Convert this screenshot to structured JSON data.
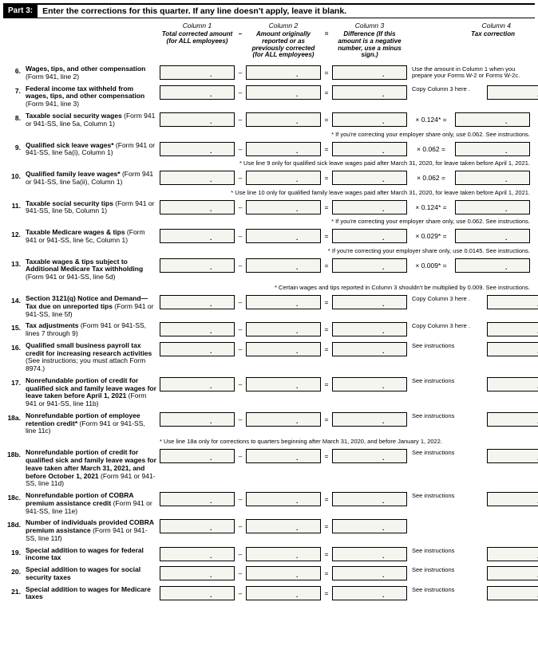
{
  "part": {
    "label": "Part 3:",
    "title": "Enter the corrections for this quarter. If any line doesn't apply, leave it blank."
  },
  "cols": {
    "h1": "Column 1",
    "h2": "Column 2",
    "h3": "Column 3",
    "h4": "Column 4",
    "s1": "Total corrected amount (for ALL employees)",
    "s2": "Amount originally reported or as previously corrected (for ALL employees)",
    "s3": "Difference (If this amount is a negative number, use a minus sign.)",
    "s4": "Tax correction"
  },
  "r6": {
    "n": "6.",
    "l": "Wages, tips, and other compensation",
    "s": " (Form 941, line 2)",
    "note": "Use the amount in Column 1 when you prepare your Forms W-2 or Forms W-2c."
  },
  "r7": {
    "n": "7.",
    "l": "Federal income tax withheld from wages, tips, and other compensation",
    "s": " (Form 941, line 3)",
    "note": "Copy Column 3 here ."
  },
  "r8": {
    "n": "8.",
    "l": "Taxable social security wages",
    "s": " (Form 941 or 941-SS, line 5a, Column 1)",
    "rate": "× 0.124* =",
    "fn": "* If you're correcting your employer share only, use 0.062. See instructions."
  },
  "r9": {
    "n": "9.",
    "l": "Qualified sick leave wages*",
    "s": " (Form 941 or 941-SS, line 5a(i), Column 1)",
    "rate": "× 0.062 =",
    "fn": "* Use line 9 only for qualified sick leave wages paid after March 31, 2020, for leave taken before April 1, 2021."
  },
  "r10": {
    "n": "10.",
    "l": "Qualified family leave wages*",
    "s": " (Form 941 or 941-SS, line 5a(ii), Column 1)",
    "rate": "× 0.062 =",
    "fn": "* Use line 10 only for qualified family leave wages paid after March 31, 2020, for leave taken before April 1, 2021."
  },
  "r11": {
    "n": "11.",
    "l": "Taxable social security tips",
    "s": " (Form 941 or 941-SS, line 5b, Column 1)",
    "rate": "× 0.124* =",
    "fn": "* If you're correcting your employer share only, use 0.062. See instructions."
  },
  "r12": {
    "n": "12.",
    "l": "Taxable Medicare wages & tips",
    "s": " (Form 941 or 941-SS, line 5c, Column 1)",
    "rate": "× 0.029* =",
    "fn": "* If you're correcting your employer share only, use 0.0145. See instructions."
  },
  "r13": {
    "n": "13.",
    "l": "Taxable wages & tips subject to Additional Medicare Tax withholding",
    "s": " (Form 941 or 941-SS, line 5d)",
    "rate": "× 0.009* =",
    "fn": "* Certain wages and tips reported in Column 3 shouldn't be multiplied by 0.009. See instructions."
  },
  "r14": {
    "n": "14.",
    "l": "Section 3121(q) Notice and Demand—Tax due on unreported tips",
    "s": " (Form 941 or 941-SS, line 5f)",
    "note": "Copy Column 3 here ."
  },
  "r15": {
    "n": "15.",
    "l": "Tax adjustments",
    "s": " (Form 941 or 941-SS, lines 7 through 9)",
    "note": "Copy Column 3 here ."
  },
  "r16": {
    "n": "16.",
    "l": "Qualified small business payroll tax credit for increasing research activities",
    "s": " (See instructions; you must attach Form 8974.)",
    "note": "See instructions"
  },
  "r17": {
    "n": "17.",
    "l": "Nonrefundable portion of credit for qualified sick and family leave wages for leave taken before April 1, 2021",
    "s": " (Form 941 or 941-SS, line 11b)",
    "note": "See instructions"
  },
  "r18a": {
    "n": "18a.",
    "l": "Nonrefundable portion of employee retention credit*",
    "s": " (Form 941 or 941-SS, line 11c)",
    "note": "See instructions",
    "fn": "* Use line 18a only for corrections to quarters beginning after March 31, 2020, and before January 1, 2022."
  },
  "r18b": {
    "n": "18b.",
    "l": "Nonrefundable portion of credit for qualified sick and family leave wages for leave taken after March 31, 2021, and before October 1, 2021",
    "s": " (Form 941 or 941-SS, line 11d)",
    "note": "See instructions"
  },
  "r18c": {
    "n": "18c.",
    "l": "Nonrefundable portion of COBRA premium assistance credit",
    "s": " (Form 941 or 941-SS, line 11e)",
    "note": "See instructions"
  },
  "r18d": {
    "n": "18d.",
    "l": "Number of individuals provided COBRA premium assistance",
    "s": " (Form 941 or 941-SS, line 11f)"
  },
  "r19": {
    "n": "19.",
    "l": "Special addition to wages for federal income tax",
    "note": "See instructions"
  },
  "r20": {
    "n": "20.",
    "l": "Special addition to wages for social security taxes",
    "note": "See instructions"
  },
  "r21": {
    "n": "21.",
    "l": "Special addition to wages for Medicare taxes",
    "note": "See instructions"
  }
}
